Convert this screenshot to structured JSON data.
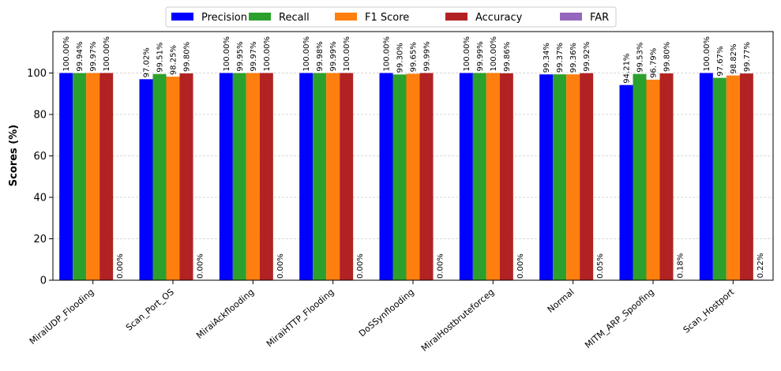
{
  "chart_data": {
    "type": "bar",
    "title": "",
    "xlabel": "",
    "ylabel": "Scores (%)",
    "ylim": [
      0,
      120
    ],
    "yticks": [
      0,
      20,
      40,
      60,
      80,
      100
    ],
    "grid": true,
    "legend_position": "top-center",
    "categories": [
      "MiraiUDP_Flooding",
      "Scan_Port_OS",
      "MiraiAckflooding",
      "MiraiHTTP_Flooding",
      "DoSSynflooding",
      "MiraiHostbruteforceg",
      "Normal",
      "MITM_ARP_Spoofing",
      "Scan_Hostport"
    ],
    "series": [
      {
        "name": "Precision",
        "color": "#0000ff",
        "values": [
          100.0,
          97.02,
          100.0,
          100.0,
          100.0,
          100.0,
          99.34,
          94.21,
          100.0
        ]
      },
      {
        "name": "Recall",
        "color": "#2ca02c",
        "values": [
          99.94,
          99.51,
          99.95,
          99.98,
          99.3,
          99.99,
          99.37,
          99.53,
          97.67
        ]
      },
      {
        "name": "F1 Score",
        "color": "#ff7f0e",
        "values": [
          99.97,
          98.25,
          99.97,
          99.99,
          99.65,
          100.0,
          99.36,
          96.79,
          98.82
        ]
      },
      {
        "name": "Accuracy",
        "color": "#b22222",
        "values": [
          100.0,
          99.8,
          100.0,
          100.0,
          99.99,
          99.86,
          99.92,
          99.8,
          99.77
        ]
      },
      {
        "name": "FAR",
        "color": "#9467bd",
        "values": [
          0.0,
          0.0,
          0.0,
          0.0,
          0.0,
          0.0,
          0.05,
          0.18,
          0.22
        ]
      }
    ]
  }
}
